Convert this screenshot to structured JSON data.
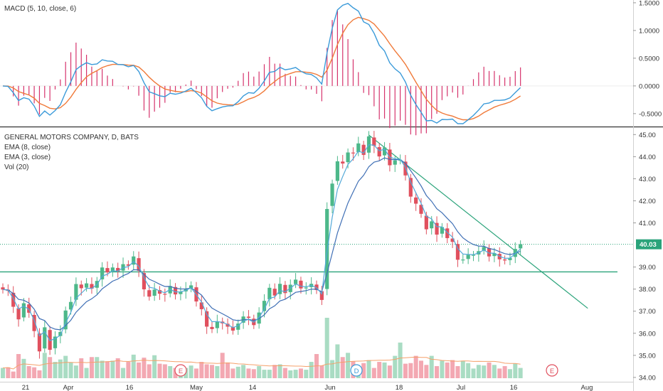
{
  "chart_data": [
    {
      "panel": "macd",
      "type": "line",
      "title": "MACD (5, 10, close, 6)",
      "ylim": [
        -0.72,
        1.55
      ],
      "yticks": [
        "1.5000",
        "1.0000",
        "0.5000",
        "0.0000",
        "-0.5000"
      ],
      "ytick_values": [
        1.5,
        1.0,
        0.5,
        0.0,
        -0.5
      ],
      "series": [
        {
          "key": "macd",
          "color": "#3a9ad9"
        },
        {
          "key": "signal",
          "color": "#f07a3a"
        },
        {
          "key": "histogram",
          "color": "#d6336c"
        }
      ]
    },
    {
      "panel": "price",
      "type": "candlestick",
      "title": "GENERAL MOTORS COMPANY, D, BATS",
      "legend": [
        "EMA (8, close)",
        "EMA (3, close)",
        "Vol (20)"
      ],
      "ylim": [
        33.9,
        45.3
      ],
      "yticks": [
        "45.00",
        "44.00",
        "43.00",
        "42.00",
        "41.00",
        "39.00",
        "38.00",
        "37.00",
        "36.00",
        "35.00",
        "34.00"
      ],
      "ytick_values": [
        45,
        44,
        43,
        42,
        41,
        39,
        38,
        37,
        36,
        35,
        34
      ],
      "last_price": "40.03",
      "last_price_value": 40.03,
      "xticks": [
        "21",
        "Apr",
        "16",
        "May",
        "14",
        "Jun",
        "18",
        "Jul",
        "16",
        "Aug"
      ],
      "event_markers": [
        "E",
        "D",
        "E"
      ],
      "colors": {
        "up": "#4db88a",
        "down": "#e0505e",
        "up_vol": "#a9dcc3",
        "down_vol": "#f3a8b2"
      },
      "closes": [
        37.98,
        37.92,
        37.2,
        36.63,
        37.36,
        36.93,
        36.1,
        35.18,
        36.27,
        35.25,
        35.85,
        36.06,
        37.03,
        37.42,
        38.23,
        38.04,
        38.26,
        38.02,
        38.37,
        38.98,
        38.76,
        38.98,
        38.8,
        39.13,
        39.06,
        39.48,
        38.83,
        37.99,
        37.66,
        37.98,
        37.79,
        37.76,
        38.14,
        37.76,
        37.88,
        38.02,
        38.17,
        37.44,
        37.09,
        36.3,
        36.19,
        36.54,
        36.45,
        36.3,
        36.12,
        36.44,
        36.76,
        36.7,
        36.37,
        36.94,
        37.47,
        38.06,
        37.71,
        38.24,
        37.82,
        38.2,
        38.43,
        38.03,
        38.07,
        38.24,
        37.96,
        37.51,
        41.63,
        42.78,
        43.79,
        43.69,
        44.19,
        44.15,
        44.6,
        44.08,
        44.92,
        44.49,
        44.01,
        44.42,
        43.61,
        43.83,
        43.86,
        43.15,
        42.19,
        41.87,
        41.41,
        40.71,
        41.07,
        40.47,
        40.81,
        40.31,
        40.14,
        39.33,
        39.34,
        39.55,
        39.55,
        39.72,
        39.91,
        39.48,
        39.63,
        39.35,
        39.3,
        39.41,
        39.82,
        40.03
      ],
      "volumes": [
        0.17,
        0.18,
        0.11,
        0.4,
        0.32,
        0.2,
        0.18,
        0.13,
        0.42,
        0.35,
        0.27,
        0.31,
        0.37,
        0.26,
        0.21,
        0.33,
        0.17,
        0.35,
        0.35,
        0.29,
        0.28,
        0.29,
        0.33,
        0.17,
        0.27,
        0.39,
        0.26,
        0.34,
        0.23,
        0.38,
        0.24,
        0.23,
        0.2,
        0.17,
        0.2,
        0.17,
        0.21,
        0.16,
        0.27,
        0.23,
        0.22,
        0.2,
        0.42,
        0.26,
        0.16,
        0.19,
        0.22,
        0.16,
        0.15,
        0.2,
        0.14,
        0.14,
        0.22,
        0.23,
        0.17,
        0.13,
        0.14,
        0.16,
        0.14,
        0.27,
        0.4,
        0.21,
        1.0,
        0.3,
        0.56,
        0.35,
        0.42,
        0.28,
        0.18,
        0.25,
        0.3,
        0.17,
        0.27,
        0.26,
        0.21,
        0.37,
        0.59,
        0.24,
        0.25,
        0.37,
        0.29,
        0.22,
        0.37,
        0.2,
        0.29,
        0.26,
        0.3,
        0.2,
        0.29,
        0.25,
        0.16,
        0.22,
        0.21,
        0.26,
        0.22,
        0.16,
        0.2,
        0.15,
        0.24,
        0.17
      ],
      "support_level": 38.78,
      "trendline": [
        [
          70,
          44.98
        ],
        [
          111.87,
          37.13
        ]
      ],
      "ema_fast_label": "EMA (3, close)",
      "ema_slow_label": "EMA (8, close)"
    }
  ]
}
